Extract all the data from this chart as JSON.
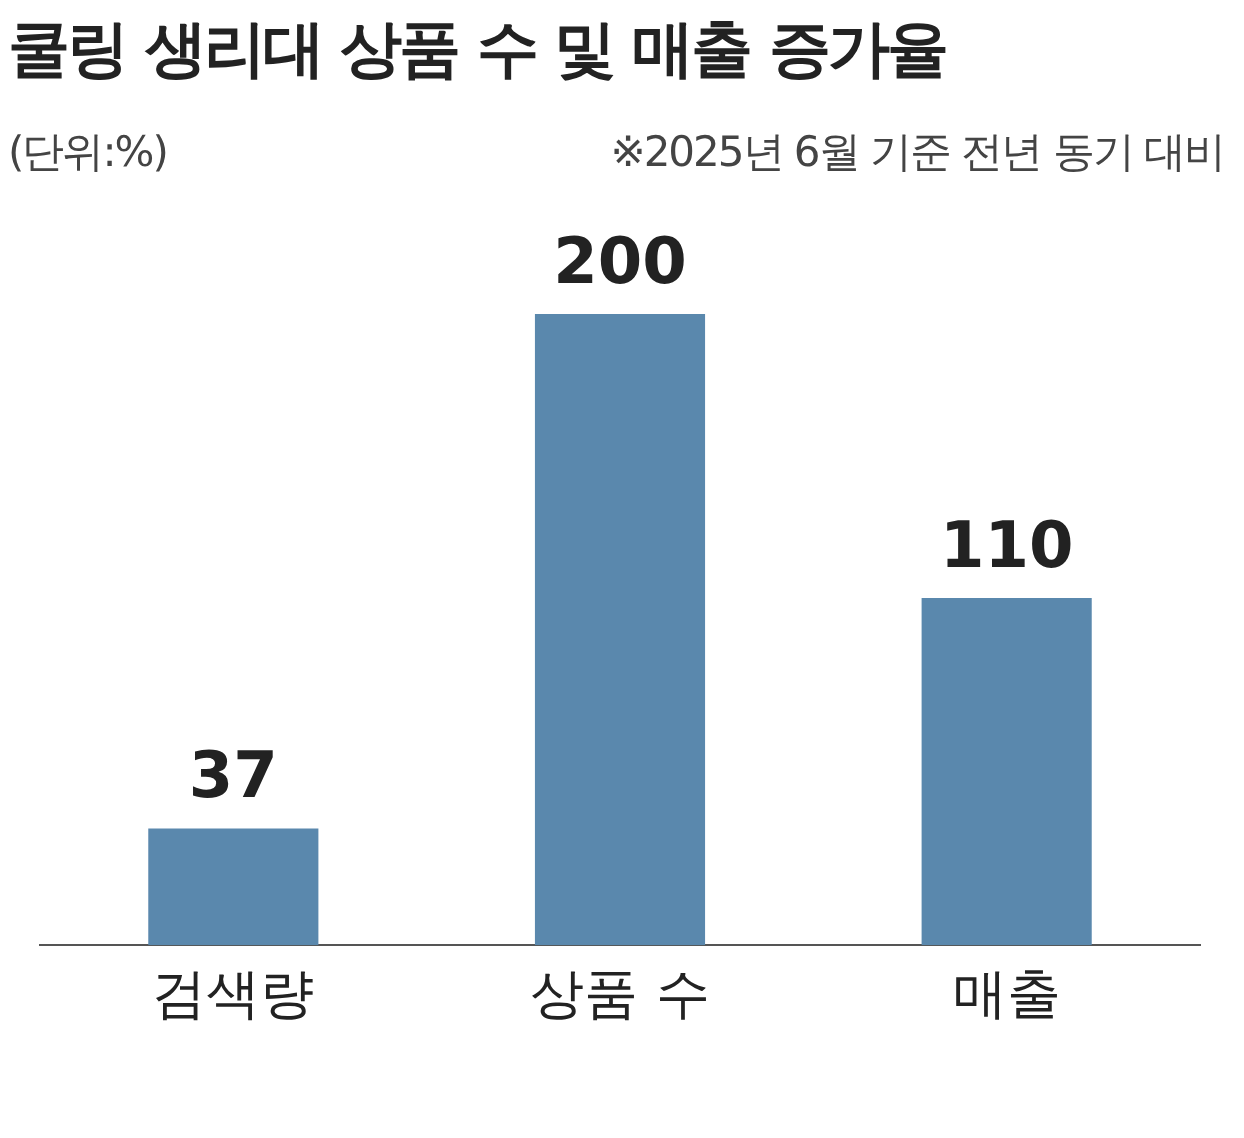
{
  "chart_data": {
    "type": "bar",
    "title": "쿨링 생리대 상품 수 및 매출 증가율",
    "subtitle": "(단위:%)",
    "annotations": [
      "※2025년 6월 기준 전년 동기 대비"
    ],
    "categories": [
      "검색량",
      "상품 수",
      "매출"
    ],
    "values": [
      37,
      200,
      110
    ],
    "color": "#5a88ad",
    "data_labels": true,
    "grid": false,
    "legend": false,
    "tick_labels": "x"
  }
}
